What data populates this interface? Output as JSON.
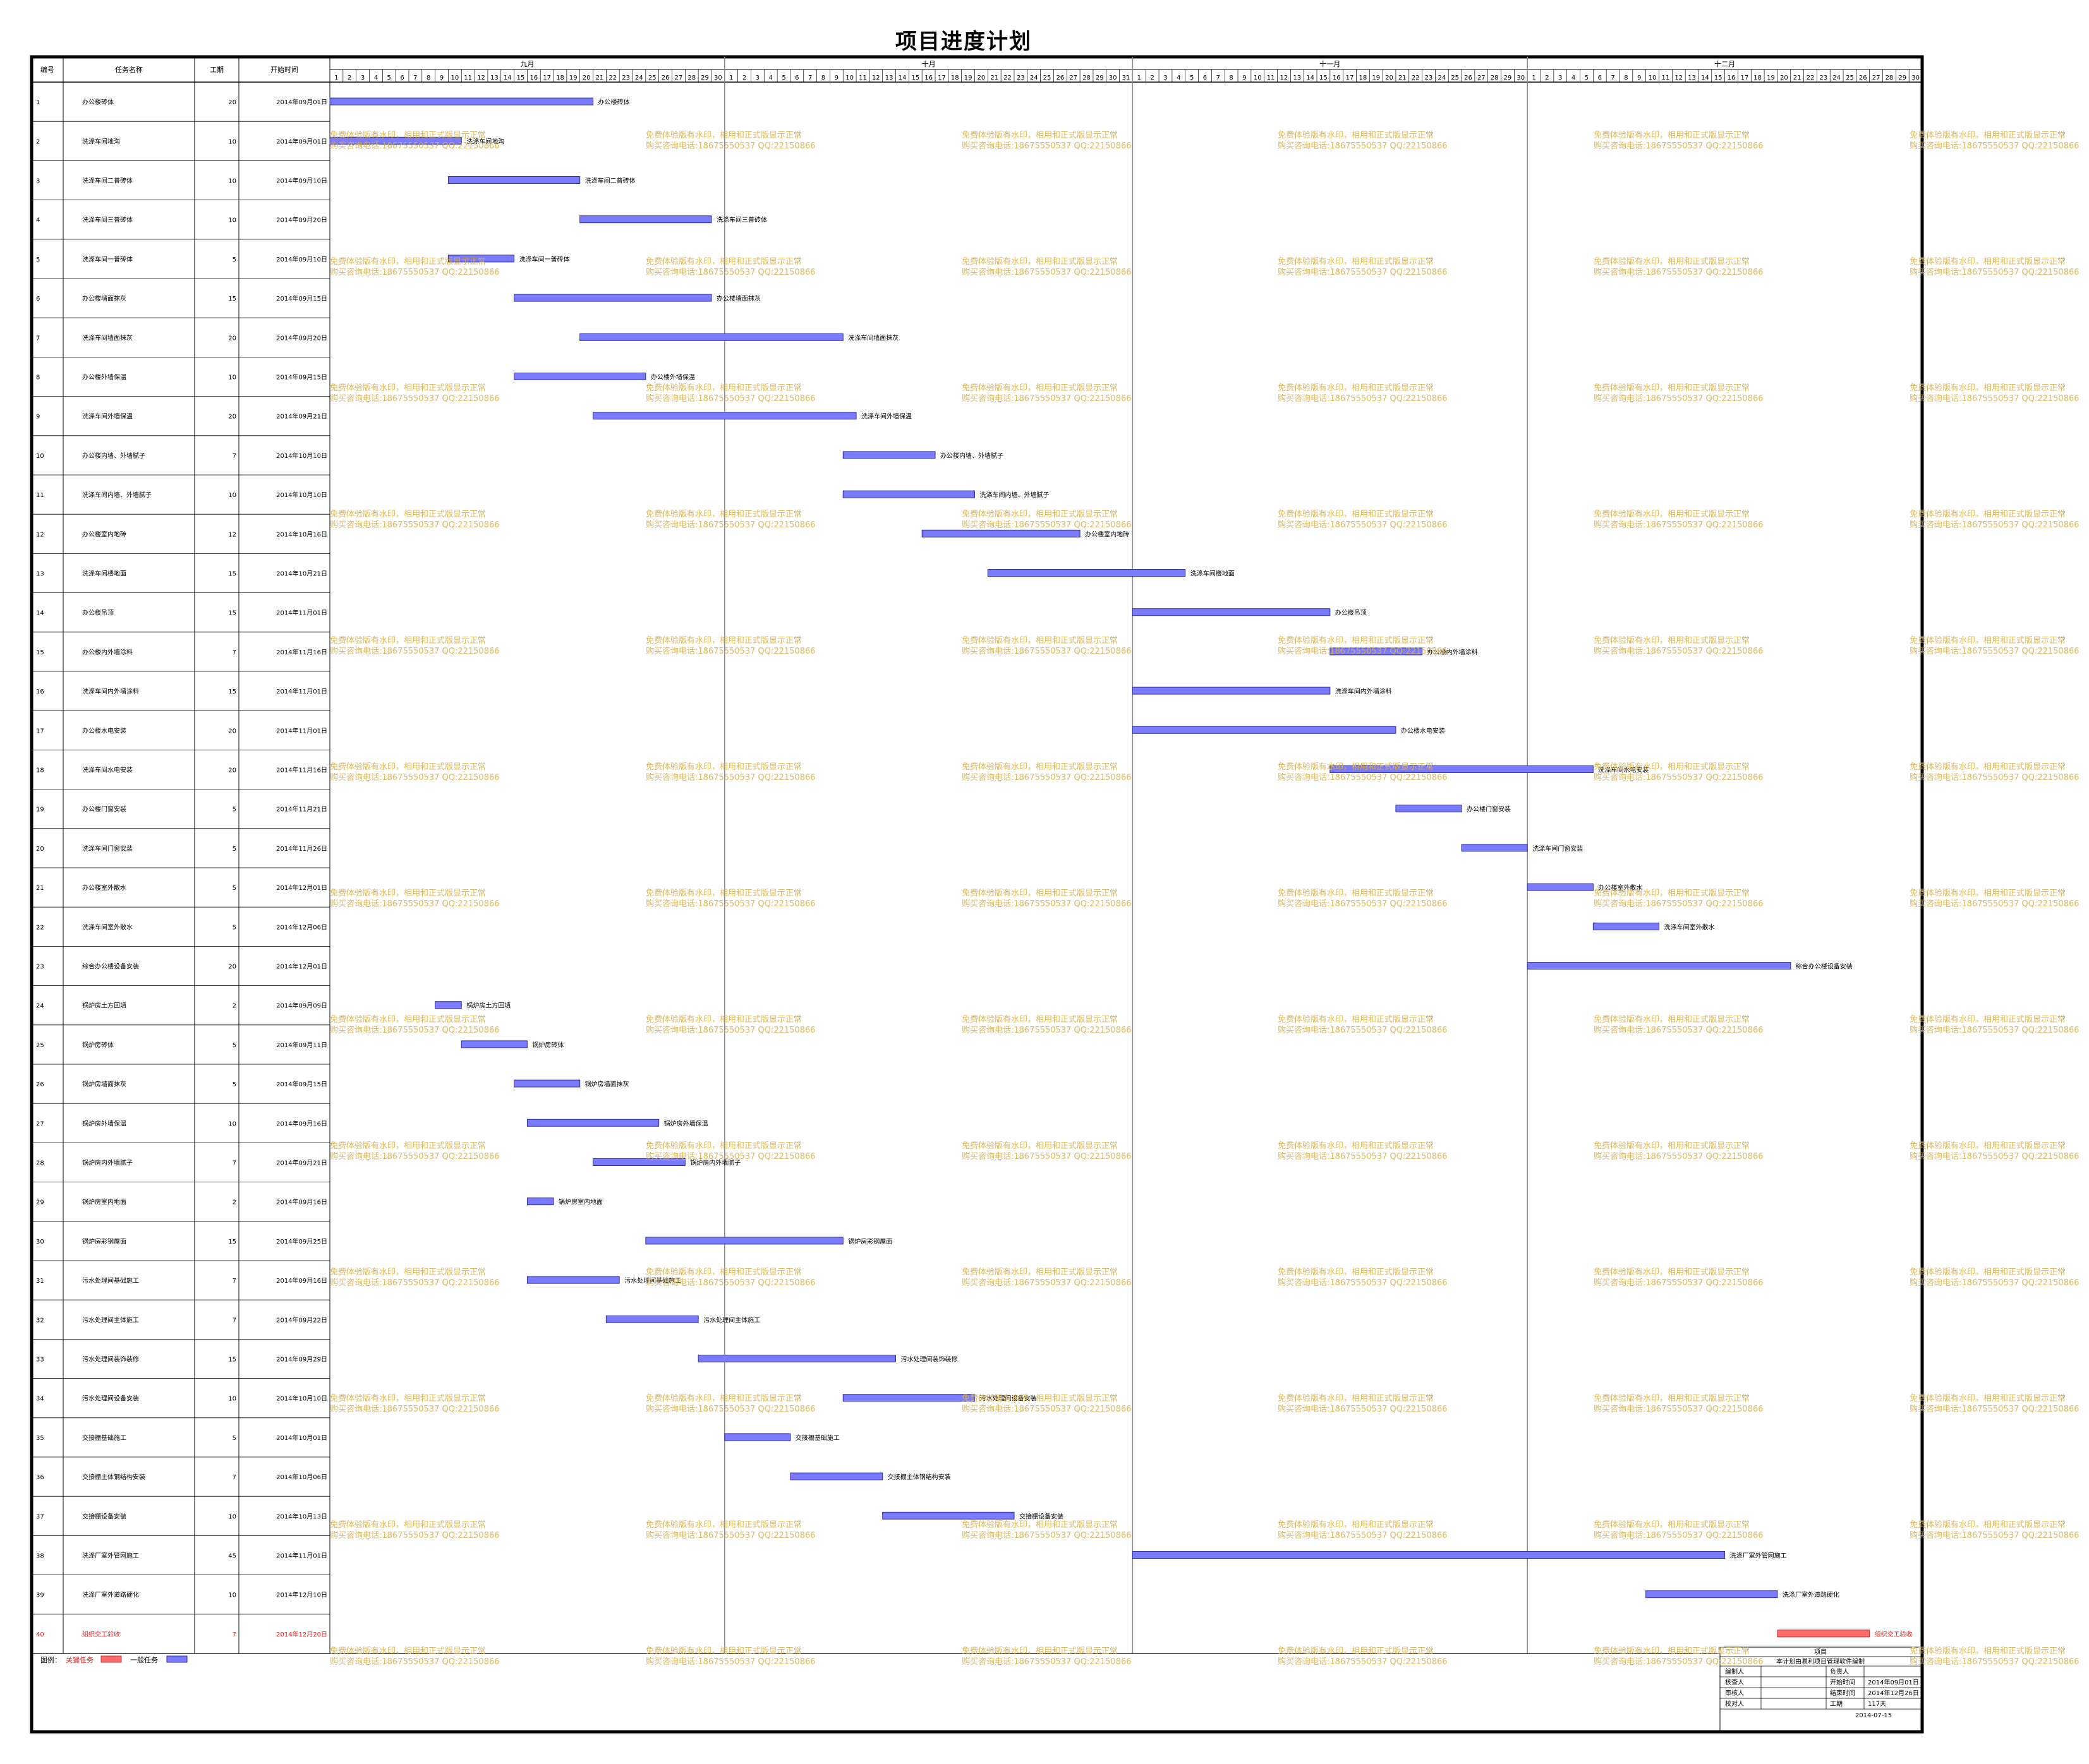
{
  "title": "项目进度计划",
  "columns": {
    "id": "编号",
    "name": "任务名称",
    "duration": "工期",
    "start": "开始时间"
  },
  "months": [
    {
      "label": "九月",
      "days": 30
    },
    {
      "label": "十月",
      "days": 31
    },
    {
      "label": "十一月",
      "days": 30
    },
    {
      "label": "十二月",
      "days": 30
    }
  ],
  "tasks": [
    {
      "id": "1",
      "name": "办公楼砖体",
      "duration": 20,
      "start": "2014年09月01日",
      "critical": false
    },
    {
      "id": "2",
      "name": "洗涤车间地沟",
      "duration": 10,
      "start": "2014年09月01日",
      "critical": false
    },
    {
      "id": "3",
      "name": "洗涤车间二普砖体",
      "duration": 10,
      "start": "2014年09月10日",
      "critical": false
    },
    {
      "id": "4",
      "name": "洗涤车间三普砖体",
      "duration": 10,
      "start": "2014年09月20日",
      "critical": false
    },
    {
      "id": "5",
      "name": "洗涤车间一普砖体",
      "duration": 5,
      "start": "2014年09月10日",
      "critical": false
    },
    {
      "id": "6",
      "name": "办公楼墙面抹灰",
      "duration": 15,
      "start": "2014年09月15日",
      "critical": false
    },
    {
      "id": "7",
      "name": "洗涤车间墙面抹灰",
      "duration": 20,
      "start": "2014年09月20日",
      "critical": false
    },
    {
      "id": "8",
      "name": "办公楼外墙保温",
      "duration": 10,
      "start": "2014年09月15日",
      "critical": false
    },
    {
      "id": "9",
      "name": "洗涤车间外墙保温",
      "duration": 20,
      "start": "2014年09月21日",
      "critical": false
    },
    {
      "id": "10",
      "name": "办公楼内墙、外墙腻子",
      "duration": 7,
      "start": "2014年10月10日",
      "critical": false
    },
    {
      "id": "11",
      "name": "洗涤车间内墙、外墙腻子",
      "duration": 10,
      "start": "2014年10月10日",
      "critical": false
    },
    {
      "id": "12",
      "name": "办公楼室内地砖",
      "duration": 12,
      "start": "2014年10月16日",
      "critical": false
    },
    {
      "id": "13",
      "name": "洗涤车间楼地面",
      "duration": 15,
      "start": "2014年10月21日",
      "critical": false
    },
    {
      "id": "14",
      "name": "办公楼吊顶",
      "duration": 15,
      "start": "2014年11月01日",
      "critical": false
    },
    {
      "id": "15",
      "name": "办公楼内外墙涂料",
      "duration": 7,
      "start": "2014年11月16日",
      "critical": false
    },
    {
      "id": "16",
      "name": "洗涤车间内外墙涂料",
      "duration": 15,
      "start": "2014年11月01日",
      "critical": false
    },
    {
      "id": "17",
      "name": "办公楼水电安装",
      "duration": 20,
      "start": "2014年11月01日",
      "critical": false
    },
    {
      "id": "18",
      "name": "洗涤车间水电安装",
      "duration": 20,
      "start": "2014年11月16日",
      "critical": false
    },
    {
      "id": "19",
      "name": "办公楼门窗安装",
      "duration": 5,
      "start": "2014年11月21日",
      "critical": false
    },
    {
      "id": "20",
      "name": "洗涤车间门窗安装",
      "duration": 5,
      "start": "2014年11月26日",
      "critical": false
    },
    {
      "id": "21",
      "name": "办公楼室外散水",
      "duration": 5,
      "start": "2014年12月01日",
      "critical": false
    },
    {
      "id": "22",
      "name": "洗涤车间室外散水",
      "duration": 5,
      "start": "2014年12月06日",
      "critical": false
    },
    {
      "id": "23",
      "name": "综合办公楼设备安装",
      "duration": 20,
      "start": "2014年12月01日",
      "critical": false
    },
    {
      "id": "24",
      "name": "锅炉房土方回填",
      "duration": 2,
      "start": "2014年09月09日",
      "critical": false
    },
    {
      "id": "25",
      "name": "锅炉房砖体",
      "duration": 5,
      "start": "2014年09月11日",
      "critical": false
    },
    {
      "id": "26",
      "name": "锅炉房墙面抹灰",
      "duration": 5,
      "start": "2014年09月15日",
      "critical": false
    },
    {
      "id": "27",
      "name": "锅炉房外墙保温",
      "duration": 10,
      "start": "2014年09月16日",
      "critical": false
    },
    {
      "id": "28",
      "name": "锅炉房内外墙腻子",
      "duration": 7,
      "start": "2014年09月21日",
      "critical": false
    },
    {
      "id": "29",
      "name": "锅炉房室内地面",
      "duration": 2,
      "start": "2014年09月16日",
      "critical": false
    },
    {
      "id": "30",
      "name": "锅炉房彩钢屋面",
      "duration": 15,
      "start": "2014年09月25日",
      "critical": false
    },
    {
      "id": "31",
      "name": "污水处理间基础施工",
      "duration": 7,
      "start": "2014年09月16日",
      "critical": false
    },
    {
      "id": "32",
      "name": "污水处理间主体施工",
      "duration": 7,
      "start": "2014年09月22日",
      "critical": false
    },
    {
      "id": "33",
      "name": "污水处理间装饰装修",
      "duration": 15,
      "start": "2014年09月29日",
      "critical": false
    },
    {
      "id": "34",
      "name": "污水处理间设备安装",
      "duration": 10,
      "start": "2014年10月10日",
      "critical": false
    },
    {
      "id": "35",
      "name": "交接棚基础施工",
      "duration": 5,
      "start": "2014年10月01日",
      "critical": false
    },
    {
      "id": "36",
      "name": "交接棚主体钢结构安装",
      "duration": 7,
      "start": "2014年10月06日",
      "critical": false
    },
    {
      "id": "37",
      "name": "交接棚设备安装",
      "duration": 10,
      "start": "2014年10月13日",
      "critical": false
    },
    {
      "id": "38",
      "name": "洗涤厂室外管网施工",
      "duration": 45,
      "start": "2014年11月01日",
      "critical": false
    },
    {
      "id": "39",
      "name": "洗涤厂室外道路硬化",
      "duration": 10,
      "start": "2014年12月10日",
      "critical": false
    },
    {
      "id": "40",
      "name": "组织交工验收",
      "duration": 7,
      "start": "2014年12月20日",
      "critical": true
    }
  ],
  "legend": {
    "label": "图例：",
    "critical": "关键任务",
    "normal": "一般任务"
  },
  "info_box": {
    "project_label": "项目",
    "software": "本计划由易利项目管理软件编制",
    "rows": [
      [
        "编制人",
        "",
        "负责人",
        ""
      ],
      [
        "核查人",
        "",
        "开始时间",
        "2014年09月01日"
      ],
      [
        "审核人",
        "",
        "结束时间",
        "2014年12月26日"
      ],
      [
        "校对人",
        "",
        "工期",
        "117天"
      ]
    ],
    "date": "2014-07-15"
  },
  "watermark": {
    "line1": "免费体验版有水印，相用和正式版显示正常",
    "line2": "购买咨询电话:18675550537 QQ:22150866"
  },
  "colors": {
    "normal_bar": "#7b7bff",
    "critical_bar": "#ff6b6b",
    "critical_text": "#e02020",
    "watermark": "#d9b04a"
  },
  "chart_data": {
    "type": "gantt",
    "x_unit": "day",
    "x_range": [
      "2014-09-01",
      "2014-12-30"
    ],
    "series": [
      {
        "name": "一般任务",
        "tasks": "1-39"
      },
      {
        "name": "关键任务",
        "tasks": "40"
      }
    ]
  }
}
